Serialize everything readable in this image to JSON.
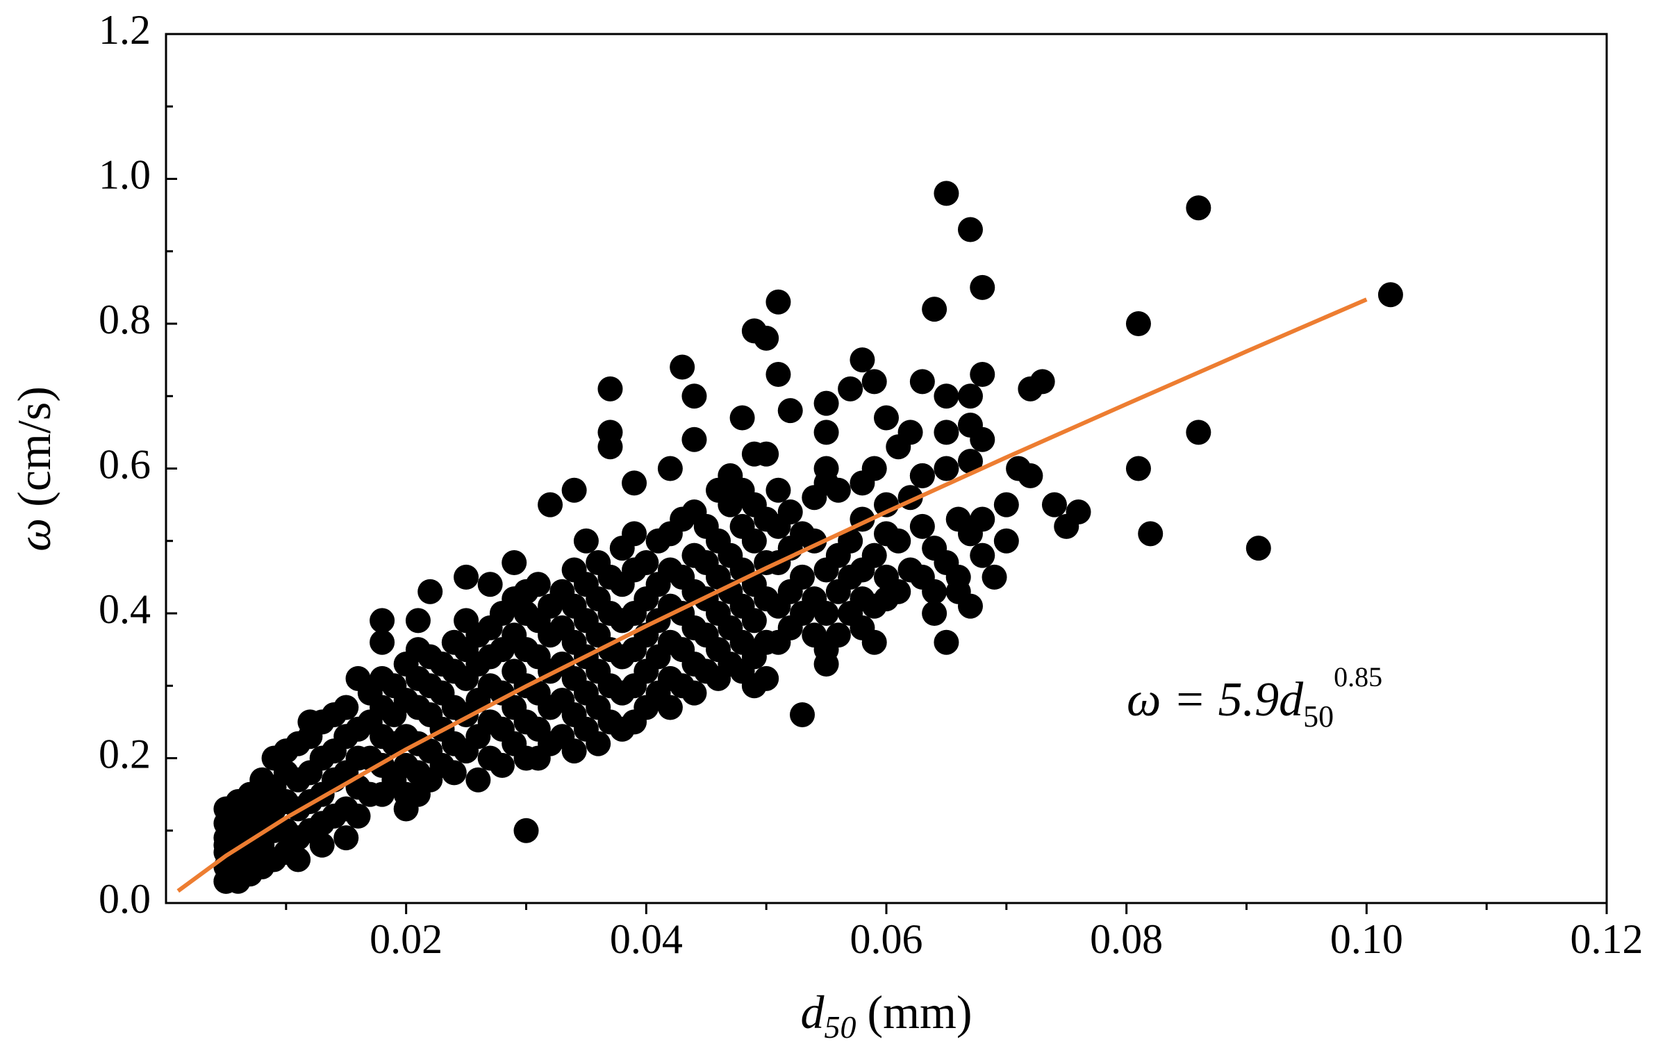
{
  "chart_data": {
    "type": "scatter",
    "xlabel": {
      "symbol": "d",
      "sub": "50",
      "unit": "(mm)"
    },
    "ylabel": {
      "symbol": "ω",
      "unit": "(cm/s)"
    },
    "annotation": {
      "text": "ω = 5.9d",
      "sub": "50",
      "sup": "0.85"
    },
    "xlim": [
      0,
      0.12
    ],
    "ylim": [
      0,
      1.2
    ],
    "xticks": [
      0.02,
      0.04,
      0.06,
      0.08,
      {
        "value": 0.1,
        "label": "0.10"
      },
      0.12
    ],
    "yticks": [
      {
        "value": 0,
        "label": "0.0"
      },
      0.2,
      0.4,
      0.6,
      0.8,
      {
        "value": 1,
        "label": "1.0"
      },
      1.2
    ],
    "xminorticks": [
      0.01,
      0.03,
      0.05,
      0.07,
      0.09,
      0.11
    ],
    "yminorticks": [
      0.1,
      0.3,
      0.5,
      0.7,
      0.9,
      1.1
    ],
    "color": "#000000",
    "x": [
      0.065,
      0.067,
      0.086,
      0.068,
      0.102,
      0.081,
      0.064,
      0.051,
      0.049,
      0.05,
      0.051,
      0.043,
      0.037,
      0.044,
      0.058,
      0.059,
      0.057,
      0.063,
      0.068,
      0.073,
      0.072,
      0.065,
      0.067,
      0.055,
      0.052,
      0.06,
      0.048,
      0.037,
      0.037,
      0.044,
      0.042,
      0.062,
      0.065,
      0.067,
      0.068,
      0.086,
      0.081,
      0.091,
      0.082,
      0.074,
      0.076,
      0.075,
      0.071,
      0.072,
      0.07,
      0.07,
      0.069,
      0.065,
      0.053,
      0.03,
      0.039,
      0.034,
      0.032,
      0.029,
      0.049,
      0.05,
      0.055,
      0.059,
      0.055,
      0.061,
      0.063,
      0.058,
      0.06,
      0.059,
      0.055,
      0.064,
      0.067,
      0.066,
      0.018,
      0.018,
      0.022,
      0.025,
      0.027,
      0.02,
      0.021,
      0.011,
      0.013,
      0.015,
      0.005,
      0.005,
      0.007,
      0.009,
      0.012,
      0.005,
      0.005,
      0.005,
      0.005,
      0.005,
      0.005,
      0.006,
      0.006,
      0.006,
      0.006,
      0.006,
      0.007,
      0.007,
      0.007,
      0.007,
      0.008,
      0.008,
      0.008,
      0.008,
      0.008,
      0.009,
      0.009,
      0.009,
      0.009,
      0.01,
      0.01,
      0.01,
      0.01,
      0.01,
      0.011,
      0.011,
      0.011,
      0.011,
      0.012,
      0.012,
      0.012,
      0.012,
      0.013,
      0.013,
      0.013,
      0.013,
      0.014,
      0.014,
      0.014,
      0.014,
      0.015,
      0.015,
      0.015,
      0.015,
      0.016,
      0.016,
      0.016,
      0.016,
      0.016,
      0.017,
      0.017,
      0.017,
      0.017,
      0.018,
      0.018,
      0.018,
      0.018,
      0.018,
      0.019,
      0.019,
      0.019,
      0.019,
      0.02,
      0.02,
      0.02,
      0.02,
      0.02,
      0.021,
      0.021,
      0.021,
      0.021,
      0.021,
      0.021,
      0.022,
      0.022,
      0.022,
      0.022,
      0.022,
      0.023,
      0.023,
      0.023,
      0.023,
      0.024,
      0.024,
      0.024,
      0.024,
      0.024,
      0.025,
      0.025,
      0.025,
      0.025,
      0.025,
      0.026,
      0.026,
      0.026,
      0.026,
      0.026,
      0.027,
      0.027,
      0.027,
      0.027,
      0.027,
      0.028,
      0.028,
      0.028,
      0.028,
      0.028,
      0.029,
      0.029,
      0.029,
      0.029,
      0.029,
      0.03,
      0.03,
      0.03,
      0.03,
      0.03,
      0.03,
      0.031,
      0.031,
      0.031,
      0.031,
      0.031,
      0.031,
      0.032,
      0.032,
      0.032,
      0.032,
      0.032,
      0.033,
      0.033,
      0.033,
      0.033,
      0.033,
      0.034,
      0.034,
      0.034,
      0.034,
      0.034,
      0.034,
      0.035,
      0.035,
      0.035,
      0.035,
      0.035,
      0.035,
      0.036,
      0.036,
      0.036,
      0.036,
      0.036,
      0.036,
      0.037,
      0.037,
      0.037,
      0.037,
      0.037,
      0.038,
      0.038,
      0.038,
      0.038,
      0.038,
      0.038,
      0.039,
      0.039,
      0.039,
      0.039,
      0.039,
      0.039,
      0.04,
      0.04,
      0.04,
      0.04,
      0.04,
      0.041,
      0.041,
      0.041,
      0.041,
      0.041,
      0.042,
      0.042,
      0.042,
      0.042,
      0.042,
      0.042,
      0.043,
      0.043,
      0.043,
      0.043,
      0.043,
      0.044,
      0.044,
      0.044,
      0.044,
      0.044,
      0.044,
      0.045,
      0.045,
      0.045,
      0.045,
      0.045,
      0.046,
      0.046,
      0.046,
      0.046,
      0.046,
      0.046,
      0.047,
      0.047,
      0.047,
      0.047,
      0.047,
      0.047,
      0.048,
      0.048,
      0.048,
      0.048,
      0.048,
      0.048,
      0.049,
      0.049,
      0.049,
      0.049,
      0.049,
      0.049,
      0.05,
      0.05,
      0.05,
      0.05,
      0.05,
      0.051,
      0.051,
      0.051,
      0.051,
      0.051,
      0.052,
      0.052,
      0.052,
      0.052,
      0.053,
      0.053,
      0.053,
      0.054,
      0.054,
      0.054,
      0.054,
      0.055,
      0.055,
      0.055,
      0.055,
      0.056,
      0.056,
      0.056,
      0.056,
      0.057,
      0.057,
      0.057,
      0.058,
      0.058,
      0.058,
      0.058,
      0.059,
      0.059,
      0.06,
      0.06,
      0.06,
      0.061,
      0.061,
      0.062,
      0.062,
      0.063,
      0.063,
      0.063,
      0.064,
      0.064,
      0.065,
      0.065,
      0.066,
      0.066,
      0.067,
      0.067,
      0.068,
      0.068
    ],
    "values": [
      0.98,
      0.93,
      0.96,
      0.85,
      0.84,
      0.8,
      0.82,
      0.83,
      0.79,
      0.78,
      0.73,
      0.74,
      0.71,
      0.7,
      0.75,
      0.72,
      0.71,
      0.72,
      0.73,
      0.72,
      0.71,
      0.7,
      0.7,
      0.69,
      0.68,
      0.67,
      0.67,
      0.65,
      0.63,
      0.64,
      0.6,
      0.65,
      0.65,
      0.66,
      0.64,
      0.65,
      0.6,
      0.49,
      0.51,
      0.55,
      0.54,
      0.52,
      0.6,
      0.59,
      0.55,
      0.5,
      0.45,
      0.36,
      0.26,
      0.1,
      0.58,
      0.57,
      0.55,
      0.47,
      0.62,
      0.62,
      0.6,
      0.6,
      0.65,
      0.63,
      0.59,
      0.42,
      0.42,
      0.36,
      0.33,
      0.4,
      0.41,
      0.43,
      0.39,
      0.36,
      0.43,
      0.45,
      0.44,
      0.13,
      0.15,
      0.06,
      0.08,
      0.09,
      0.03,
      0.08,
      0.15,
      0.2,
      0.25,
      0.03,
      0.05,
      0.07,
      0.09,
      0.11,
      0.13,
      0.03,
      0.06,
      0.09,
      0.12,
      0.14,
      0.04,
      0.07,
      0.1,
      0.13,
      0.05,
      0.08,
      0.11,
      0.14,
      0.17,
      0.06,
      0.1,
      0.13,
      0.16,
      0.07,
      0.1,
      0.14,
      0.18,
      0.21,
      0.09,
      0.13,
      0.17,
      0.22,
      0.1,
      0.14,
      0.18,
      0.23,
      0.11,
      0.15,
      0.2,
      0.25,
      0.12,
      0.17,
      0.21,
      0.26,
      0.13,
      0.18,
      0.23,
      0.27,
      0.12,
      0.16,
      0.2,
      0.24,
      0.31,
      0.15,
      0.2,
      0.25,
      0.29,
      0.15,
      0.19,
      0.23,
      0.27,
      0.31,
      0.17,
      0.22,
      0.26,
      0.3,
      0.15,
      0.19,
      0.23,
      0.28,
      0.33,
      0.18,
      0.22,
      0.27,
      0.31,
      0.35,
      0.39,
      0.17,
      0.21,
      0.26,
      0.3,
      0.34,
      0.19,
      0.24,
      0.29,
      0.33,
      0.18,
      0.22,
      0.27,
      0.32,
      0.36,
      0.21,
      0.26,
      0.31,
      0.35,
      0.39,
      0.17,
      0.23,
      0.28,
      0.33,
      0.37,
      0.2,
      0.25,
      0.3,
      0.34,
      0.38,
      0.19,
      0.24,
      0.29,
      0.35,
      0.4,
      0.22,
      0.27,
      0.32,
      0.37,
      0.42,
      0.2,
      0.25,
      0.3,
      0.35,
      0.4,
      0.43,
      0.2,
      0.24,
      0.29,
      0.34,
      0.39,
      0.44,
      0.22,
      0.27,
      0.32,
      0.37,
      0.41,
      0.23,
      0.28,
      0.33,
      0.38,
      0.43,
      0.21,
      0.26,
      0.31,
      0.36,
      0.41,
      0.46,
      0.24,
      0.29,
      0.34,
      0.39,
      0.44,
      0.5,
      0.22,
      0.27,
      0.32,
      0.37,
      0.42,
      0.47,
      0.25,
      0.3,
      0.35,
      0.4,
      0.45,
      0.24,
      0.29,
      0.34,
      0.39,
      0.44,
      0.49,
      0.25,
      0.3,
      0.35,
      0.4,
      0.46,
      0.51,
      0.27,
      0.32,
      0.37,
      0.42,
      0.47,
      0.29,
      0.34,
      0.39,
      0.44,
      0.5,
      0.27,
      0.31,
      0.36,
      0.41,
      0.46,
      0.51,
      0.3,
      0.35,
      0.4,
      0.45,
      0.53,
      0.29,
      0.33,
      0.38,
      0.43,
      0.48,
      0.54,
      0.32,
      0.37,
      0.42,
      0.47,
      0.52,
      0.31,
      0.35,
      0.4,
      0.45,
      0.5,
      0.57,
      0.33,
      0.38,
      0.43,
      0.48,
      0.55,
      0.59,
      0.32,
      0.36,
      0.41,
      0.46,
      0.52,
      0.57,
      0.3,
      0.34,
      0.39,
      0.44,
      0.5,
      0.55,
      0.31,
      0.36,
      0.42,
      0.47,
      0.53,
      0.36,
      0.41,
      0.47,
      0.52,
      0.57,
      0.38,
      0.43,
      0.49,
      0.54,
      0.4,
      0.45,
      0.51,
      0.37,
      0.42,
      0.5,
      0.56,
      0.35,
      0.4,
      0.46,
      0.58,
      0.37,
      0.43,
      0.48,
      0.57,
      0.4,
      0.45,
      0.5,
      0.38,
      0.46,
      0.53,
      0.58,
      0.41,
      0.48,
      0.45,
      0.51,
      0.55,
      0.43,
      0.5,
      0.46,
      0.56,
      0.45,
      0.52,
      0.59,
      0.43,
      0.49,
      0.47,
      0.6,
      0.45,
      0.53,
      0.51,
      0.61,
      0.48,
      0.53
    ],
    "fit": {
      "color": "#ed7d31",
      "x": [
        0.001,
        0.005,
        0.01,
        0.02,
        0.03,
        0.04,
        0.05,
        0.06,
        0.07,
        0.08,
        0.09,
        0.1
      ],
      "values": [
        0.0166,
        0.0653,
        0.1177,
        0.2122,
        0.2994,
        0.3825,
        0.4626,
        0.5401,
        0.6155,
        0.689,
        0.7617,
        0.8335
      ]
    }
  }
}
